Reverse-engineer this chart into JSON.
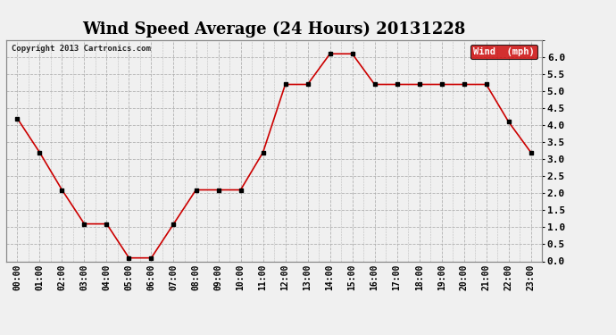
{
  "title": "Wind Speed Average (24 Hours) 20131228",
  "copyright_text": "Copyright 2013 Cartronics.com",
  "legend_label": "Wind  (mph)",
  "x_labels": [
    "00:00",
    "01:00",
    "02:00",
    "03:00",
    "04:00",
    "05:00",
    "06:00",
    "07:00",
    "08:00",
    "09:00",
    "10:00",
    "11:00",
    "12:00",
    "13:00",
    "14:00",
    "15:00",
    "16:00",
    "17:00",
    "18:00",
    "19:00",
    "20:00",
    "21:00",
    "22:00",
    "23:00"
  ],
  "y_values": [
    4.2,
    3.2,
    2.1,
    1.1,
    1.1,
    0.1,
    0.1,
    1.1,
    2.1,
    2.1,
    2.1,
    3.2,
    5.2,
    5.2,
    6.1,
    6.1,
    5.2,
    5.2,
    5.2,
    5.2,
    5.2,
    5.2,
    4.1,
    3.2
  ],
  "line_color": "#cc0000",
  "marker_color": "#000000",
  "bg_color": "#f0f0f0",
  "grid_color": "#aaaaaa",
  "ylim": [
    0.0,
    6.5
  ],
  "yticks": [
    0.0,
    0.5,
    1.0,
    1.5,
    2.0,
    2.5,
    3.0,
    3.5,
    4.0,
    4.5,
    5.0,
    5.5,
    6.0
  ],
  "title_fontsize": 13,
  "legend_bg": "#cc0000",
  "legend_text_color": "#ffffff"
}
